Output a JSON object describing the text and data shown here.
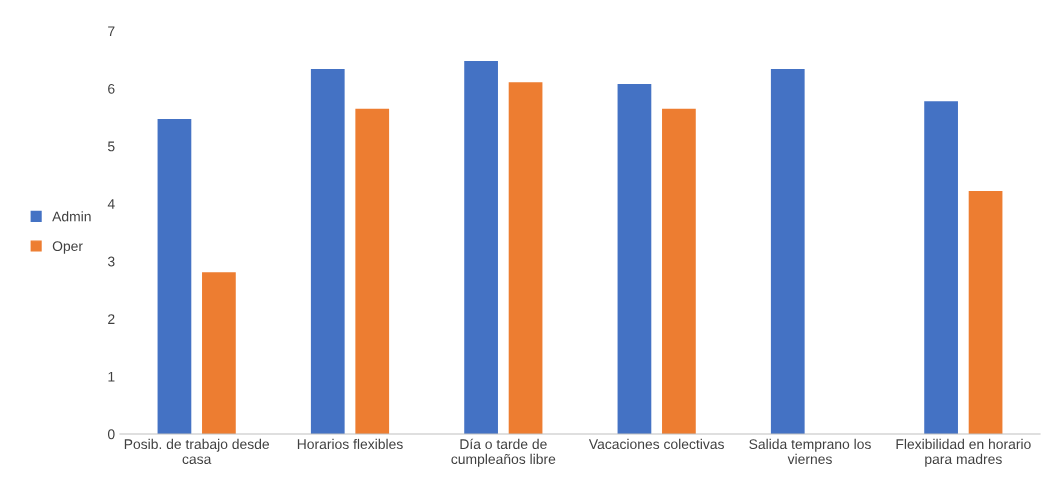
{
  "chart_data": {
    "type": "bar",
    "categories": [
      "Posib. de trabajo desde\ncasa",
      "Horarios flexibles",
      "Día o tarde de\ncumpleaños libre",
      "Vacaciones colectivas",
      "Salida temprano los\nviernes",
      "Flexibilidad en horario\npara madres"
    ],
    "series": [
      {
        "name": "Admin",
        "color": "#4472c4",
        "values": [
          5.47,
          6.34,
          6.48,
          6.08,
          6.34,
          5.78
        ]
      },
      {
        "name": "Oper",
        "color": "#ed7d31",
        "values": [
          2.81,
          5.65,
          6.11,
          5.65,
          null,
          4.22
        ]
      }
    ],
    "ylim": [
      0,
      7
    ],
    "yticks": [
      0,
      1,
      2,
      3,
      4,
      5,
      6,
      7
    ],
    "grid": false,
    "legend": "left"
  }
}
